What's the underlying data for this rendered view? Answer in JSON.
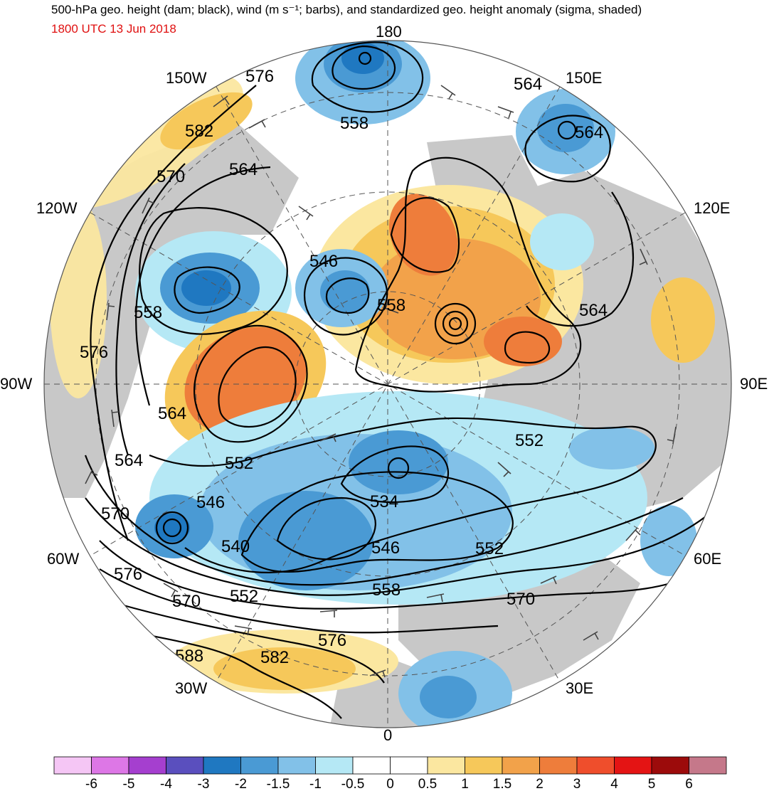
{
  "header": {
    "title": "500-hPa geo. height (dam; black), wind (m s⁻¹; barbs), and standardized geo. height anomaly (sigma, shaded)",
    "valid_time": "1800 UTC 13 Jun 2018"
  },
  "map": {
    "projection": "north polar stereographic",
    "longitude_labels": {
      "n180": "180",
      "w150": "150W",
      "e150": "150E",
      "w120": "120W",
      "e120": "120E",
      "w90": "90W",
      "e90": "90E",
      "w60": "60W",
      "e60": "60E",
      "w30": "30W",
      "e30": "30E",
      "zero": "0"
    },
    "contour_labels": [
      "576",
      "582",
      "570",
      "564",
      "558",
      "564",
      "564",
      "546",
      "558",
      "558",
      "564",
      "576",
      "564",
      "552",
      "552",
      "564",
      "546",
      "534",
      "570",
      "540",
      "546",
      "552",
      "576",
      "570",
      "552",
      "558",
      "570",
      "588",
      "582",
      "576"
    ],
    "colors": {
      "land": "#c8c8c8",
      "ocean": "#ffffff",
      "contour": "#000000",
      "barb": "#444444",
      "grid": "#555555"
    }
  },
  "colorbar": {
    "tick_labels": [
      "-6",
      "-5",
      "-4",
      "-3",
      "-2",
      "-1.5",
      "-1",
      "-0.5",
      "0",
      "0.5",
      "1",
      "1.5",
      "2",
      "3",
      "4",
      "5",
      "6"
    ],
    "bins": [
      {
        "color": "#f5c6f5",
        "label": "< -6"
      },
      {
        "color": "#dd77e6",
        "label": "-6 to -5"
      },
      {
        "color": "#a53fcf",
        "label": "-5 to -4"
      },
      {
        "color": "#5a4fbe",
        "label": "-4 to -3"
      },
      {
        "color": "#1f78c1",
        "label": "-3 to -2"
      },
      {
        "color": "#4a9ad4",
        "label": "-2 to -1.5"
      },
      {
        "color": "#82c1e8",
        "label": "-1.5 to -1"
      },
      {
        "color": "#b5e8f5",
        "label": "-1 to -0.5"
      },
      {
        "color": "#ffffff",
        "label": "-0.5 to 0"
      },
      {
        "color": "#ffffff",
        "label": "0 to 0.5"
      },
      {
        "color": "#fbe7a0",
        "label": "0.5 to 1"
      },
      {
        "color": "#f6c85a",
        "label": "1 to 1.5"
      },
      {
        "color": "#f2a24a",
        "label": "1.5 to 2"
      },
      {
        "color": "#ee7d3b",
        "label": "2 to 3"
      },
      {
        "color": "#ef4e2c",
        "label": "3 to 4"
      },
      {
        "color": "#e41414",
        "label": "4 to 5"
      },
      {
        "color": "#9c0b0b",
        "label": "5 to 6"
      },
      {
        "color": "#c5788a",
        "label": "> 6"
      }
    ]
  }
}
